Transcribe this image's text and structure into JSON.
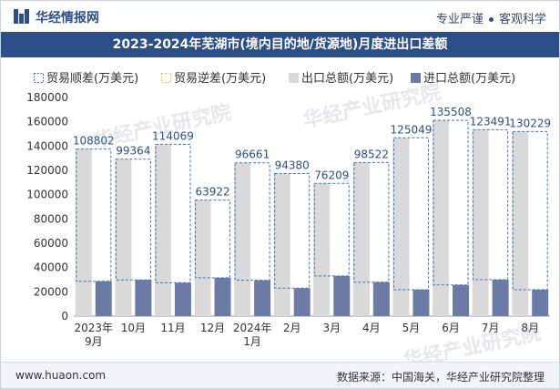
{
  "header": {
    "brand": "华经情报网",
    "tag1": "专业严谨",
    "tag2": "客观科学"
  },
  "watermarks": [
    "华经产业研究院",
    "华经产业研究院",
    "华经产业研究院"
  ],
  "footer": {
    "url": "www.huaon.com",
    "source": "数据来源：中国海关，华经产业研究院整理"
  },
  "colors": {
    "export": "#d9d9d9",
    "import": "#6b7ba6",
    "surplus_line": "#3a78b7",
    "title_bg": "#2b4f86"
  },
  "chart_data": {
    "type": "bar",
    "title": "2023-2024年芜湖市(境内目的地/货源地)月度进出口差额",
    "categories": [
      "2023年\n9月",
      "10月",
      "11月",
      "12月",
      "2024年\n1月",
      "2月",
      "3月",
      "4月",
      "5月",
      "6月",
      "7月",
      "8月"
    ],
    "series": [
      {
        "name": "贸易顺差(万美元)",
        "values": [
          108802,
          99364,
          114069,
          63922,
          96661,
          94380,
          76209,
          98522,
          125049,
          135508,
          123491,
          130229
        ]
      },
      {
        "name": "贸易逆差(万美元)",
        "values": [
          0,
          0,
          0,
          0,
          0,
          0,
          0,
          0,
          0,
          0,
          0,
          0
        ]
      },
      {
        "name": "出口总额(万美元)",
        "values": [
          137500,
          129200,
          141500,
          95500,
          126200,
          117400,
          109300,
          126500,
          146800,
          161200,
          153500,
          152000
        ]
      },
      {
        "name": "进口总额(万美元)",
        "values": [
          28700,
          29900,
          27400,
          31600,
          29500,
          23000,
          33100,
          28000,
          21800,
          25700,
          30000,
          21800
        ]
      }
    ],
    "ylim": [
      0,
      180000
    ],
    "yticks": [
      0,
      20000,
      40000,
      60000,
      80000,
      100000,
      120000,
      140000,
      160000,
      180000
    ],
    "legend_position": "top",
    "grid": false
  }
}
